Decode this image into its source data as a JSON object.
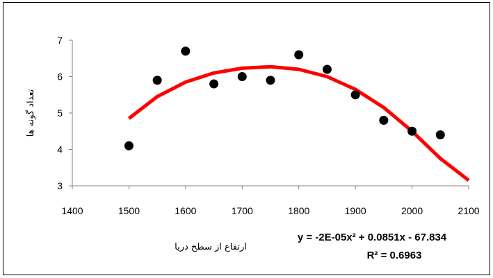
{
  "chart_data": {
    "type": "scatter",
    "title": "",
    "xlabel": "ارتفاع از سطح دریا",
    "ylabel": "تعداد گونه ها",
    "xlim": [
      1400,
      2100
    ],
    "ylim": [
      3,
      7
    ],
    "x_ticks": [
      "1400",
      "1500",
      "1600",
      "1700",
      "1800",
      "1900",
      "2000",
      "2100"
    ],
    "y_ticks": [
      "3",
      "4",
      "5",
      "6",
      "7"
    ],
    "grid": false,
    "legend": "none",
    "series": [
      {
        "points": [
          {
            "x": 1500,
            "y": 4.1
          },
          {
            "x": 1550,
            "y": 5.9
          },
          {
            "x": 1600,
            "y": 6.7
          },
          {
            "x": 1650,
            "y": 5.8
          },
          {
            "x": 1700,
            "y": 6.0
          },
          {
            "x": 1750,
            "y": 5.9
          },
          {
            "x": 1800,
            "y": 6.6
          },
          {
            "x": 1850,
            "y": 6.2
          },
          {
            "x": 1900,
            "y": 5.5
          },
          {
            "x": 1950,
            "y": 4.8
          },
          {
            "x": 2000,
            "y": 4.5
          },
          {
            "x": 2050,
            "y": 4.4
          }
        ],
        "color": "#000000"
      }
    ],
    "trendline": {
      "type": "polynomial",
      "order": 2,
      "x_range": [
        1500,
        2100
      ],
      "color": "#ff0000",
      "fit_points": [
        {
          "x": 1500,
          "y": 4.85
        },
        {
          "x": 1550,
          "y": 5.45
        },
        {
          "x": 1600,
          "y": 5.85
        },
        {
          "x": 1650,
          "y": 6.1
        },
        {
          "x": 1700,
          "y": 6.23
        },
        {
          "x": 1750,
          "y": 6.27
        },
        {
          "x": 1800,
          "y": 6.2
        },
        {
          "x": 1850,
          "y": 6.0
        },
        {
          "x": 1900,
          "y": 5.65
        },
        {
          "x": 1950,
          "y": 5.15
        },
        {
          "x": 2000,
          "y": 4.5
        },
        {
          "x": 2050,
          "y": 3.75
        },
        {
          "x": 2100,
          "y": 3.15
        }
      ],
      "equation": "y = -2E-05x² + 0.0851x - 67.834",
      "r_squared": "R² = 0.6963"
    }
  }
}
